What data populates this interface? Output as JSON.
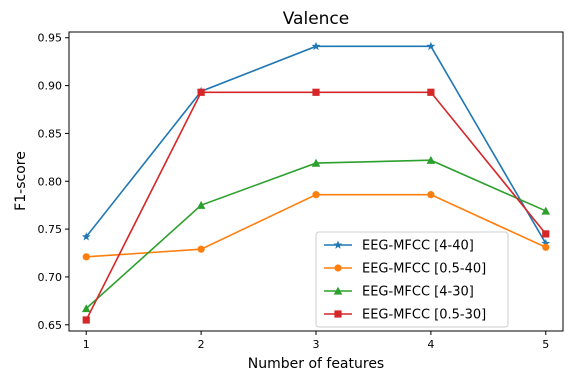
{
  "chart_data": {
    "type": "line",
    "title": "Valence",
    "xlabel": "Number of features",
    "ylabel": "F1-score",
    "x": [
      1,
      2,
      3,
      4,
      5
    ],
    "xticks": [
      "1",
      "2",
      "3",
      "4",
      "5"
    ],
    "xlim": [
      0.85,
      5.15
    ],
    "ylim": [
      0.6435,
      0.956
    ],
    "yticks": [
      "0.65",
      "0.70",
      "0.75",
      "0.80",
      "0.85",
      "0.90",
      "0.95"
    ],
    "grid": false,
    "legend_position": "lower-right",
    "series": [
      {
        "name": "EEG-MFCC [4-40]",
        "marker": "star",
        "color": "#1f77b4",
        "values": [
          0.742,
          0.894,
          0.941,
          0.941,
          0.735
        ]
      },
      {
        "name": "EEG-MFCC [0.5-40]",
        "marker": "circle",
        "color": "#ff7f0e",
        "values": [
          0.721,
          0.729,
          0.786,
          0.786,
          0.731
        ]
      },
      {
        "name": "EEG-MFCC [4-30]",
        "marker": "triangle",
        "color": "#2ca02c",
        "values": [
          0.667,
          0.775,
          0.819,
          0.822,
          0.769
        ]
      },
      {
        "name": "EEG-MFCC [0.5-30]",
        "marker": "square",
        "color": "#d62728",
        "values": [
          0.655,
          0.893,
          0.893,
          0.893,
          0.745
        ]
      }
    ]
  }
}
